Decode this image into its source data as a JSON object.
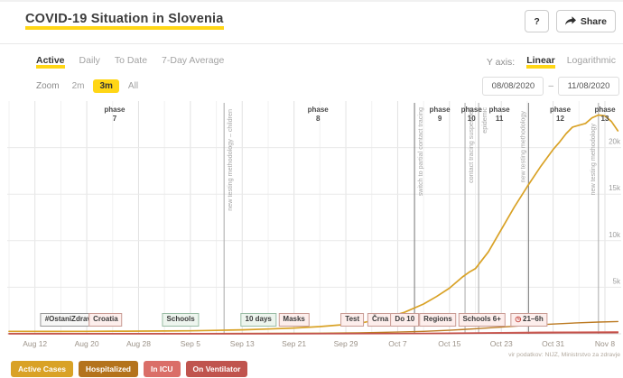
{
  "accent_color": "#ffd615",
  "header": {
    "title": "COVID-19 Situation in Slovenia",
    "help_label": "?",
    "share_label": "Share"
  },
  "tabs": {
    "items": [
      {
        "label": "Active",
        "active": true
      },
      {
        "label": "Daily",
        "active": false
      },
      {
        "label": "To Date",
        "active": false
      },
      {
        "label": "7-Day Average",
        "active": false
      }
    ]
  },
  "y_axis_control": {
    "label": "Y axis:",
    "options": [
      {
        "label": "Linear",
        "active": true
      },
      {
        "label": "Logarithmic",
        "active": false
      }
    ]
  },
  "zoom_control": {
    "label": "Zoom",
    "options": [
      {
        "label": "2m",
        "active": false
      },
      {
        "label": "3m",
        "active": true
      },
      {
        "label": "All",
        "active": false
      }
    ]
  },
  "date_range": {
    "from": "08/08/2020",
    "separator": "–",
    "to": "11/08/2020"
  },
  "chart_data": {
    "type": "line",
    "xlim_days": [
      0,
      95
    ],
    "x_day0_date": "Aug 8",
    "ylim": [
      0,
      25000
    ],
    "grid": true,
    "x_ticks": [
      {
        "label": "Aug 12",
        "day": 4
      },
      {
        "label": "Aug 20",
        "day": 12
      },
      {
        "label": "Aug 28",
        "day": 20
      },
      {
        "label": "Sep 5",
        "day": 28
      },
      {
        "label": "Sep 13",
        "day": 36
      },
      {
        "label": "Sep 21",
        "day": 44
      },
      {
        "label": "Sep 29",
        "day": 52
      },
      {
        "label": "Oct 7",
        "day": 60
      },
      {
        "label": "Oct 15",
        "day": 68
      },
      {
        "label": "Oct 23",
        "day": 76
      },
      {
        "label": "Oct 31",
        "day": 84
      },
      {
        "label": "Nov 8",
        "day": 92
      }
    ],
    "y_ticks": [
      {
        "label": "5k",
        "value": 5000
      },
      {
        "label": "10k",
        "value": 10000
      },
      {
        "label": "15k",
        "value": 15000
      },
      {
        "label": "20k",
        "value": 20000
      }
    ],
    "series": [
      {
        "name": "Active Cases",
        "color": "#d9a226",
        "width": 1.7,
        "points": [
          [
            0,
            260
          ],
          [
            6,
            255
          ],
          [
            12,
            265
          ],
          [
            18,
            280
          ],
          [
            24,
            300
          ],
          [
            28,
            320
          ],
          [
            32,
            370
          ],
          [
            36,
            430
          ],
          [
            40,
            510
          ],
          [
            44,
            620
          ],
          [
            48,
            780
          ],
          [
            52,
            1000
          ],
          [
            55,
            1250
          ],
          [
            58,
            1700
          ],
          [
            61,
            2300
          ],
          [
            64,
            3200
          ],
          [
            66,
            4000
          ],
          [
            68,
            4900
          ],
          [
            70,
            6100
          ],
          [
            71,
            6600
          ],
          [
            72,
            7000
          ],
          [
            74,
            8800
          ],
          [
            76,
            11200
          ],
          [
            78,
            13600
          ],
          [
            80,
            15800
          ],
          [
            82,
            17900
          ],
          [
            84,
            19800
          ],
          [
            85,
            20600
          ],
          [
            86,
            21500
          ],
          [
            87,
            22200
          ],
          [
            88,
            22400
          ],
          [
            89,
            22600
          ],
          [
            90,
            23200
          ],
          [
            91,
            23500
          ],
          [
            92,
            23400
          ],
          [
            93,
            22800
          ],
          [
            94,
            21800
          ]
        ]
      },
      {
        "name": "Hospitalized",
        "color": "#bc7a22",
        "width": 1.4,
        "points": [
          [
            0,
            25
          ],
          [
            10,
            25
          ],
          [
            20,
            25
          ],
          [
            30,
            30
          ],
          [
            40,
            45
          ],
          [
            48,
            70
          ],
          [
            54,
            110
          ],
          [
            60,
            180
          ],
          [
            64,
            260
          ],
          [
            68,
            380
          ],
          [
            72,
            540
          ],
          [
            76,
            720
          ],
          [
            80,
            900
          ],
          [
            84,
            1050
          ],
          [
            88,
            1180
          ],
          [
            91,
            1260
          ],
          [
            94,
            1320
          ]
        ]
      },
      {
        "name": "In ICU",
        "color": "#d96c62",
        "width": 1.5,
        "points": [
          [
            0,
            5
          ],
          [
            20,
            5
          ],
          [
            40,
            10
          ],
          [
            50,
            15
          ],
          [
            58,
            30
          ],
          [
            64,
            50
          ],
          [
            70,
            85
          ],
          [
            76,
            125
          ],
          [
            82,
            160
          ],
          [
            88,
            185
          ],
          [
            94,
            200
          ]
        ]
      },
      {
        "name": "On Ventilator",
        "color": "#bf4e48",
        "width": 1.5,
        "points": [
          [
            0,
            3
          ],
          [
            30,
            3
          ],
          [
            50,
            8
          ],
          [
            60,
            18
          ],
          [
            68,
            40
          ],
          [
            74,
            65
          ],
          [
            80,
            90
          ],
          [
            86,
            105
          ],
          [
            94,
            115
          ]
        ]
      }
    ],
    "phase_word": "phase",
    "phases": [
      {
        "number": "7",
        "day": 16.3
      },
      {
        "number": "8",
        "day": 47.7
      },
      {
        "number": "9",
        "day": 66.5
      },
      {
        "number": "10",
        "day": 71.4
      },
      {
        "number": "11",
        "day": 75.7
      },
      {
        "number": "12",
        "day": 85.1
      },
      {
        "number": "13",
        "day": 92.0
      }
    ],
    "boundary_lines": [
      {
        "day": 33.2,
        "text": "new testing methodology – children",
        "strong": false,
        "side": "right",
        "text_top": 14
      },
      {
        "day": 62.6,
        "text": "switch to partial contact tracing",
        "strong": true,
        "side": "right",
        "text_top": 12
      },
      {
        "day": 70.4,
        "text": "contact tracing suspended",
        "strong": false,
        "side": "right",
        "text_top": 12
      },
      {
        "day": 72.5,
        "text": "epidemic",
        "strong": false,
        "side": "right",
        "text_top": 12
      },
      {
        "day": 80.2,
        "text": "new testing methodology",
        "strong": true,
        "side": "left",
        "text_top": 16
      },
      {
        "day": 91.0,
        "text": "new testing methodology",
        "strong": false,
        "side": "left",
        "text_top": 30
      }
    ],
    "event_flags": [
      {
        "label": "#OstaniZdrav",
        "day": 9.1,
        "type": "neutral"
      },
      {
        "label": "Croatia",
        "day": 14.9,
        "type": "red"
      },
      {
        "label": "Schools",
        "day": 26.5,
        "type": "green"
      },
      {
        "label": "10 days",
        "day": 38.5,
        "type": "green"
      },
      {
        "label": "Masks",
        "day": 44.0,
        "type": "red"
      },
      {
        "label": "Test",
        "day": 53.0,
        "type": "red"
      },
      {
        "label": "Črna",
        "day": 57.3,
        "type": "red"
      },
      {
        "label": "Do 10",
        "day": 61.1,
        "type": "red"
      },
      {
        "label": "Regions",
        "day": 66.2,
        "type": "red"
      },
      {
        "label": "Schools 6+",
        "day": 73.0,
        "type": "red"
      },
      {
        "label": "21–6h",
        "day": 80.3,
        "type": "red",
        "icon": "clock"
      }
    ],
    "source": "vir podatkov: NIJZ, Ministrstvo za zdravje"
  },
  "legend": {
    "items": [
      {
        "label": "Active Cases",
        "color": "#d9a226"
      },
      {
        "label": "Hospitalized",
        "color": "#b4731c"
      },
      {
        "label": "In ICU",
        "color": "#da6e68"
      },
      {
        "label": "On Ventilator",
        "color": "#c0544e"
      }
    ]
  }
}
